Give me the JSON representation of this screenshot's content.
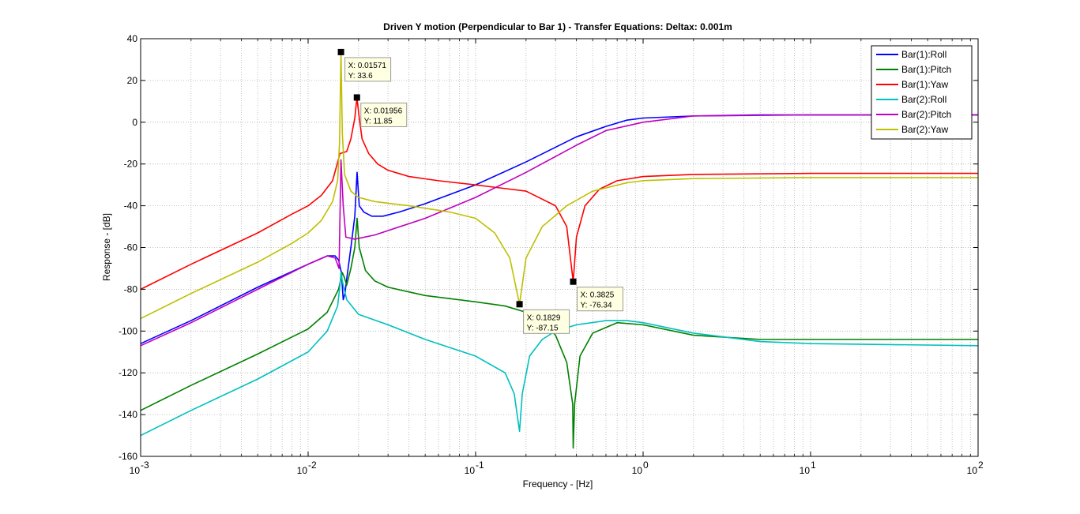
{
  "chart_data": {
    "type": "line",
    "title": "Driven Y motion (Perpendicular to Bar 1) - Transfer Equations: Deltax: 0.001m",
    "xlabel": "Frequency - [Hz]",
    "ylabel": "Response - [dB]",
    "xscale": "log",
    "xlim": [
      0.001,
      100
    ],
    "ylim": [
      -160,
      40
    ],
    "grid": true,
    "legend_position": "top-right",
    "x_ticks": [
      {
        "value": 0.001,
        "base": "10",
        "exp": "-3"
      },
      {
        "value": 0.01,
        "base": "10",
        "exp": "-2"
      },
      {
        "value": 0.1,
        "base": "10",
        "exp": "-1"
      },
      {
        "value": 1,
        "base": "10",
        "exp": "0"
      },
      {
        "value": 10,
        "base": "10",
        "exp": "1"
      },
      {
        "value": 100,
        "base": "10",
        "exp": "2"
      }
    ],
    "y_ticks": [
      {
        "value": 40,
        "label": "40"
      },
      {
        "value": 20,
        "label": "20"
      },
      {
        "value": 0,
        "label": "0"
      },
      {
        "value": -20,
        "label": "-20"
      },
      {
        "value": -40,
        "label": "-40"
      },
      {
        "value": -60,
        "label": "-60"
      },
      {
        "value": -80,
        "label": "-80"
      },
      {
        "value": -100,
        "label": "-100"
      },
      {
        "value": -120,
        "label": "-120"
      },
      {
        "value": -140,
        "label": "-140"
      },
      {
        "value": -160,
        "label": "-160"
      }
    ],
    "series": [
      {
        "name": "Bar(1):Roll",
        "color": "#0000ff",
        "points": [
          [
            0.001,
            -106
          ],
          [
            0.002,
            -95
          ],
          [
            0.005,
            -79
          ],
          [
            0.01,
            -68
          ],
          [
            0.013,
            -64
          ],
          [
            0.0145,
            -64
          ],
          [
            0.0152,
            -66
          ],
          [
            0.0158,
            -72
          ],
          [
            0.0162,
            -85
          ],
          [
            0.0166,
            -82
          ],
          [
            0.017,
            -75
          ],
          [
            0.018,
            -60
          ],
          [
            0.019,
            -45
          ],
          [
            0.0196,
            -24
          ],
          [
            0.0202,
            -40
          ],
          [
            0.0215,
            -43
          ],
          [
            0.024,
            -45
          ],
          [
            0.028,
            -45
          ],
          [
            0.035,
            -43
          ],
          [
            0.05,
            -39
          ],
          [
            0.1,
            -30
          ],
          [
            0.2,
            -19
          ],
          [
            0.4,
            -7
          ],
          [
            0.6,
            -2
          ],
          [
            0.8,
            1
          ],
          [
            1,
            2
          ],
          [
            2,
            3
          ],
          [
            5,
            3.5
          ],
          [
            10,
            3.5
          ],
          [
            100,
            3.5
          ]
        ]
      },
      {
        "name": "Bar(1):Pitch",
        "color": "#008000",
        "points": [
          [
            0.001,
            -138
          ],
          [
            0.002,
            -126
          ],
          [
            0.005,
            -111
          ],
          [
            0.01,
            -99
          ],
          [
            0.013,
            -91
          ],
          [
            0.0152,
            -80
          ],
          [
            0.0157,
            -75
          ],
          [
            0.016,
            -72
          ],
          [
            0.0164,
            -74
          ],
          [
            0.017,
            -78
          ],
          [
            0.018,
            -70
          ],
          [
            0.019,
            -60
          ],
          [
            0.0196,
            -46
          ],
          [
            0.0202,
            -60
          ],
          [
            0.022,
            -71
          ],
          [
            0.025,
            -76
          ],
          [
            0.03,
            -79
          ],
          [
            0.05,
            -83
          ],
          [
            0.1,
            -86
          ],
          [
            0.15,
            -88
          ],
          [
            0.2,
            -91
          ],
          [
            0.25,
            -95
          ],
          [
            0.3,
            -102
          ],
          [
            0.35,
            -115
          ],
          [
            0.38,
            -135
          ],
          [
            0.3825,
            -156
          ],
          [
            0.39,
            -135
          ],
          [
            0.42,
            -112
          ],
          [
            0.5,
            -101
          ],
          [
            0.7,
            -96
          ],
          [
            1,
            -97
          ],
          [
            2,
            -102
          ],
          [
            5,
            -104
          ],
          [
            10,
            -104
          ],
          [
            100,
            -104
          ]
        ]
      },
      {
        "name": "Bar(1):Yaw",
        "color": "#ff0000",
        "points": [
          [
            0.001,
            -80
          ],
          [
            0.002,
            -68
          ],
          [
            0.005,
            -53
          ],
          [
            0.008,
            -44
          ],
          [
            0.01,
            -40
          ],
          [
            0.012,
            -35
          ],
          [
            0.014,
            -28
          ],
          [
            0.0155,
            -15
          ],
          [
            0.017,
            -14
          ],
          [
            0.018,
            -8
          ],
          [
            0.019,
            2
          ],
          [
            0.01956,
            11.85
          ],
          [
            0.0202,
            2
          ],
          [
            0.021,
            -8
          ],
          [
            0.023,
            -15
          ],
          [
            0.026,
            -20
          ],
          [
            0.03,
            -23
          ],
          [
            0.04,
            -26
          ],
          [
            0.06,
            -28
          ],
          [
            0.1,
            -30
          ],
          [
            0.2,
            -33
          ],
          [
            0.3,
            -40
          ],
          [
            0.35,
            -50
          ],
          [
            0.3825,
            -76.34
          ],
          [
            0.4,
            -55
          ],
          [
            0.45,
            -40
          ],
          [
            0.55,
            -32
          ],
          [
            0.7,
            -28
          ],
          [
            1,
            -26
          ],
          [
            2,
            -25
          ],
          [
            10,
            -24.5
          ],
          [
            100,
            -24.5
          ]
        ]
      },
      {
        "name": "Bar(2):Roll",
        "color": "#00bfbf",
        "points": [
          [
            0.001,
            -150
          ],
          [
            0.002,
            -138
          ],
          [
            0.005,
            -123
          ],
          [
            0.01,
            -110
          ],
          [
            0.013,
            -100
          ],
          [
            0.015,
            -88
          ],
          [
            0.0155,
            -78
          ],
          [
            0.01571,
            -72
          ],
          [
            0.016,
            -76
          ],
          [
            0.017,
            -85
          ],
          [
            0.02,
            -92
          ],
          [
            0.03,
            -97
          ],
          [
            0.05,
            -104
          ],
          [
            0.1,
            -112
          ],
          [
            0.15,
            -120
          ],
          [
            0.17,
            -130
          ],
          [
            0.1829,
            -148
          ],
          [
            0.19,
            -130
          ],
          [
            0.21,
            -112
          ],
          [
            0.25,
            -104
          ],
          [
            0.3,
            -100
          ],
          [
            0.4,
            -97
          ],
          [
            0.6,
            -95
          ],
          [
            0.8,
            -95
          ],
          [
            1,
            -96
          ],
          [
            2,
            -101
          ],
          [
            5,
            -105
          ],
          [
            10,
            -106
          ],
          [
            100,
            -107
          ]
        ]
      },
      {
        "name": "Bar(2):Pitch",
        "color": "#bf00bf",
        "points": [
          [
            0.001,
            -107
          ],
          [
            0.002,
            -96
          ],
          [
            0.005,
            -80
          ],
          [
            0.01,
            -68
          ],
          [
            0.013,
            -64
          ],
          [
            0.0145,
            -65
          ],
          [
            0.0153,
            -70
          ],
          [
            0.01571,
            -18
          ],
          [
            0.0162,
            -40
          ],
          [
            0.0168,
            -55
          ],
          [
            0.019,
            -56
          ],
          [
            0.025,
            -54
          ],
          [
            0.05,
            -46
          ],
          [
            0.1,
            -36
          ],
          [
            0.2,
            -24
          ],
          [
            0.4,
            -11
          ],
          [
            0.6,
            -4
          ],
          [
            1,
            0
          ],
          [
            2,
            3
          ],
          [
            10,
            3.5
          ],
          [
            100,
            3.5
          ]
        ]
      },
      {
        "name": "Bar(2):Yaw",
        "color": "#bfbf00",
        "points": [
          [
            0.001,
            -94
          ],
          [
            0.002,
            -82
          ],
          [
            0.005,
            -67
          ],
          [
            0.008,
            -58
          ],
          [
            0.01,
            -53
          ],
          [
            0.012,
            -47
          ],
          [
            0.014,
            -38
          ],
          [
            0.015,
            -28
          ],
          [
            0.0154,
            -10
          ],
          [
            0.01571,
            33.6
          ],
          [
            0.016,
            -5
          ],
          [
            0.0165,
            -25
          ],
          [
            0.018,
            -33
          ],
          [
            0.02,
            -36
          ],
          [
            0.025,
            -38
          ],
          [
            0.04,
            -40
          ],
          [
            0.07,
            -43
          ],
          [
            0.1,
            -46
          ],
          [
            0.13,
            -53
          ],
          [
            0.16,
            -65
          ],
          [
            0.1829,
            -87.15
          ],
          [
            0.2,
            -65
          ],
          [
            0.25,
            -50
          ],
          [
            0.35,
            -40
          ],
          [
            0.5,
            -33
          ],
          [
            0.8,
            -29
          ],
          [
            1,
            -28
          ],
          [
            2,
            -27
          ],
          [
            10,
            -26.5
          ],
          [
            100,
            -26.5
          ]
        ]
      }
    ],
    "annotations": [
      {
        "x": 0.01571,
        "y": 33.6,
        "x_label": "X: 0.01571",
        "y_label": "Y: 33.6"
      },
      {
        "x": 0.01956,
        "y": 11.85,
        "x_label": "X: 0.01956",
        "y_label": "Y: 11.85"
      },
      {
        "x": 0.1829,
        "y": -87.15,
        "x_label": "X: 0.1829",
        "y_label": "Y: -87.15"
      },
      {
        "x": 0.3825,
        "y": -76.34,
        "x_label": "X: 0.3825",
        "y_label": "Y: -76.34"
      }
    ]
  }
}
